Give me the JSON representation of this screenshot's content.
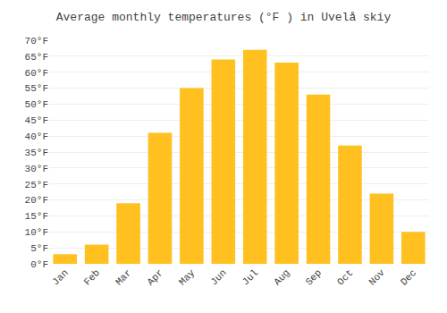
{
  "chart_data": {
    "type": "bar",
    "title": "Average monthly temperatures (°F ) in Uvelå skiy",
    "categories": [
      "Jan",
      "Feb",
      "Mar",
      "Apr",
      "May",
      "Jun",
      "Jul",
      "Aug",
      "Sep",
      "Oct",
      "Nov",
      "Dec"
    ],
    "values": [
      3,
      6,
      19,
      41,
      55,
      64,
      67,
      63,
      53,
      37,
      22,
      10
    ],
    "color": "#FFC020",
    "ylim": [
      0,
      70
    ],
    "yticks": [
      {
        "value": 0,
        "label": "0°F"
      },
      {
        "value": 5,
        "label": "5°F"
      },
      {
        "value": 10,
        "label": "10°F"
      },
      {
        "value": 15,
        "label": "15°F"
      },
      {
        "value": 20,
        "label": "20°F"
      },
      {
        "value": 25,
        "label": "25°F"
      },
      {
        "value": 30,
        "label": "30°F"
      },
      {
        "value": 35,
        "label": "35°F"
      },
      {
        "value": 40,
        "label": "40°F"
      },
      {
        "value": 45,
        "label": "45°F"
      },
      {
        "value": 50,
        "label": "50°F"
      },
      {
        "value": 55,
        "label": "55°F"
      },
      {
        "value": 60,
        "label": "60°F"
      },
      {
        "value": 65,
        "label": "65°F"
      },
      {
        "value": 70,
        "label": "70°F"
      }
    ],
    "grid": true
  }
}
